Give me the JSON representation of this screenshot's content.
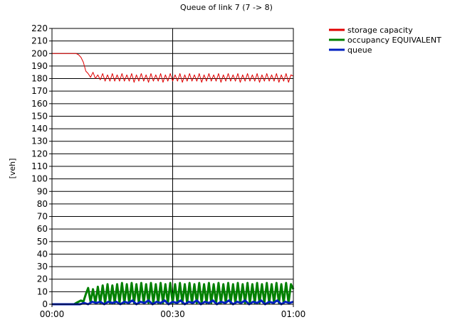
{
  "chart_data": {
    "type": "line",
    "title": "Queue of link 7 (7 -> 8)",
    "xlabel": "",
    "ylabel": "[veh]",
    "ylim": [
      0,
      220
    ],
    "ytick_step": 10,
    "xlim_minutes": [
      0,
      60
    ],
    "xticks": [
      {
        "minute": 0,
        "label": "00:00"
      },
      {
        "minute": 30,
        "label": "00:30"
      },
      {
        "minute": 60,
        "label": "01:00"
      }
    ],
    "grid": "horizontal every 10, vertical at 00:30",
    "legend_position": "top-right outside",
    "series": [
      {
        "name": "storage capacity",
        "color": "#e00000",
        "line_width": 1,
        "x": [
          0,
          6.0,
          6.6,
          7.2,
          7.8,
          8.4,
          9.0,
          9.6,
          10.2,
          10.8,
          11.4,
          12.0,
          12.6,
          13.2,
          13.8,
          14.4,
          15.0,
          15.6,
          16.2,
          16.8,
          17.4,
          18.0,
          18.6,
          19.2,
          19.8,
          20.4,
          21.0,
          21.6,
          22.2,
          22.8,
          23.4,
          24.0,
          24.6,
          25.2,
          25.8,
          26.4,
          27.0,
          27.6,
          28.2,
          28.8,
          29.4,
          30.0,
          30.6,
          31.2,
          31.8,
          32.4,
          33.0,
          33.6,
          34.2,
          34.8,
          35.4,
          36.0,
          36.6,
          37.2,
          37.8,
          38.4,
          39.0,
          39.6,
          40.2,
          40.8,
          41.4,
          42.0,
          42.6,
          43.2,
          43.8,
          44.4,
          45.0,
          45.6,
          46.2,
          46.8,
          47.4,
          48.0,
          48.6,
          49.2,
          49.8,
          50.4,
          51.0,
          51.6,
          52.2,
          52.8,
          53.4,
          54.0,
          54.6,
          55.2,
          55.8,
          56.4,
          57.0,
          57.6,
          58.2,
          58.8,
          59.4,
          60.0
        ],
        "values": [
          200,
          200,
          199,
          197,
          193,
          186,
          184,
          181,
          185,
          180,
          183,
          179,
          184,
          178,
          183,
          178,
          184,
          178,
          183,
          178,
          184,
          178,
          183,
          178,
          184,
          177,
          183,
          178,
          184,
          178,
          183,
          177,
          184,
          178,
          183,
          178,
          184,
          177,
          183,
          178,
          184,
          178,
          183,
          178,
          184,
          177,
          183,
          178,
          184,
          178,
          183,
          178,
          184,
          177,
          183,
          178,
          184,
          178,
          183,
          178,
          184,
          177,
          183,
          178,
          184,
          178,
          183,
          178,
          184,
          177,
          183,
          178,
          184,
          178,
          183,
          178,
          184,
          177,
          183,
          178,
          184,
          178,
          183,
          178,
          184,
          177,
          183,
          178,
          184,
          177,
          183,
          182
        ]
      },
      {
        "name": "occupancy EQUIVALENT",
        "color": "#008000",
        "line_width": 3,
        "x": [
          0,
          5.5,
          6.0,
          6.6,
          7.2,
          7.8,
          8.4,
          9.0,
          9.6,
          10.2,
          10.8,
          11.4,
          12.0,
          12.6,
          13.2,
          13.8,
          14.4,
          15.0,
          15.6,
          16.2,
          16.8,
          17.4,
          18.0,
          18.6,
          19.2,
          19.8,
          20.4,
          21.0,
          21.6,
          22.2,
          22.8,
          23.4,
          24.0,
          24.6,
          25.2,
          25.8,
          26.4,
          27.0,
          27.6,
          28.2,
          28.8,
          29.4,
          30.0,
          30.6,
          31.2,
          31.8,
          32.4,
          33.0,
          33.6,
          34.2,
          34.8,
          35.4,
          36.0,
          36.6,
          37.2,
          37.8,
          38.4,
          39.0,
          39.6,
          40.2,
          40.8,
          41.4,
          42.0,
          42.6,
          43.2,
          43.8,
          44.4,
          45.0,
          45.6,
          46.2,
          46.8,
          47.4,
          48.0,
          48.6,
          49.2,
          49.8,
          50.4,
          51.0,
          51.6,
          52.2,
          52.8,
          53.4,
          54.0,
          54.6,
          55.2,
          55.8,
          56.4,
          57.0,
          57.6,
          58.2,
          58.8,
          59.4,
          60.0
        ],
        "values": [
          0,
          0,
          1,
          2,
          3,
          2,
          8,
          13,
          2,
          12,
          1,
          14,
          1,
          15,
          1,
          16,
          1,
          15,
          1,
          16,
          1,
          17,
          1,
          16,
          1,
          17,
          1,
          16,
          1,
          17,
          1,
          16,
          1,
          17,
          1,
          16,
          1,
          17,
          1,
          16,
          1,
          17,
          1,
          16,
          1,
          17,
          1,
          16,
          1,
          17,
          1,
          16,
          1,
          17,
          1,
          16,
          1,
          17,
          1,
          16,
          1,
          17,
          1,
          16,
          1,
          17,
          1,
          16,
          1,
          17,
          1,
          16,
          1,
          17,
          1,
          16,
          1,
          17,
          1,
          16,
          1,
          17,
          1,
          16,
          1,
          17,
          1,
          16,
          1,
          17,
          1,
          16,
          12
        ]
      },
      {
        "name": "queue",
        "color": "#0020c0",
        "line_width": 3,
        "x": [
          0,
          5.5,
          6.0,
          7.0,
          8.0,
          9.0,
          10.0,
          11.0,
          12.0,
          13.0,
          14.0,
          15.0,
          16.0,
          17.0,
          18.0,
          19.0,
          20.0,
          21.0,
          22.0,
          23.0,
          24.0,
          25.0,
          26.0,
          27.0,
          28.0,
          29.0,
          30.0,
          31.0,
          32.0,
          33.0,
          34.0,
          35.0,
          36.0,
          37.0,
          38.0,
          39.0,
          40.0,
          41.0,
          42.0,
          43.0,
          44.0,
          45.0,
          46.0,
          47.0,
          48.0,
          49.0,
          50.0,
          51.0,
          52.0,
          53.0,
          54.0,
          55.0,
          56.0,
          57.0,
          58.0,
          59.0,
          60.0
        ],
        "values": [
          0,
          0,
          0,
          0,
          1,
          0,
          2,
          1,
          2,
          0,
          2,
          1,
          2,
          0,
          2,
          1,
          3,
          0,
          2,
          1,
          3,
          0,
          2,
          1,
          3,
          0,
          2,
          1,
          3,
          0,
          2,
          1,
          3,
          0,
          2,
          1,
          3,
          0,
          2,
          1,
          3,
          0,
          2,
          1,
          3,
          0,
          2,
          1,
          3,
          0,
          2,
          1,
          3,
          0,
          2,
          1,
          2
        ]
      }
    ]
  }
}
